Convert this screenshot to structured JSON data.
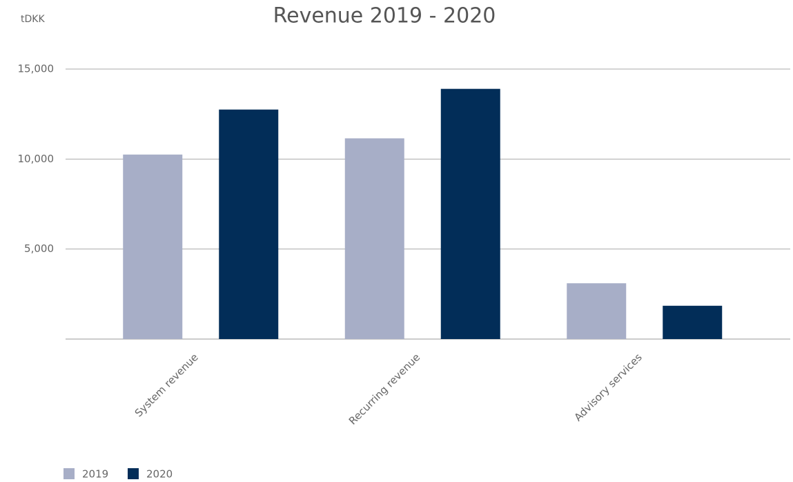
{
  "chart_data": {
    "type": "bar",
    "title": "Revenue 2019 - 2020",
    "y_label": "tDKK",
    "categories": [
      "System revenue",
      "Recurring revenue",
      "Advisory services"
    ],
    "series": [
      {
        "name": "2019",
        "color": "#a7aec7",
        "values": [
          10250,
          11150,
          3100
        ]
      },
      {
        "name": "2020",
        "color": "#022d58",
        "values": [
          12750,
          13900,
          1850
        ]
      }
    ],
    "ylim": [
      0,
      15000
    ],
    "yticks": [
      {
        "value": 5000,
        "label": "5,000"
      },
      {
        "value": 10000,
        "label": "10,000"
      },
      {
        "value": 15000,
        "label": "15,000"
      }
    ],
    "grid": true,
    "legend": "bottom-left"
  }
}
